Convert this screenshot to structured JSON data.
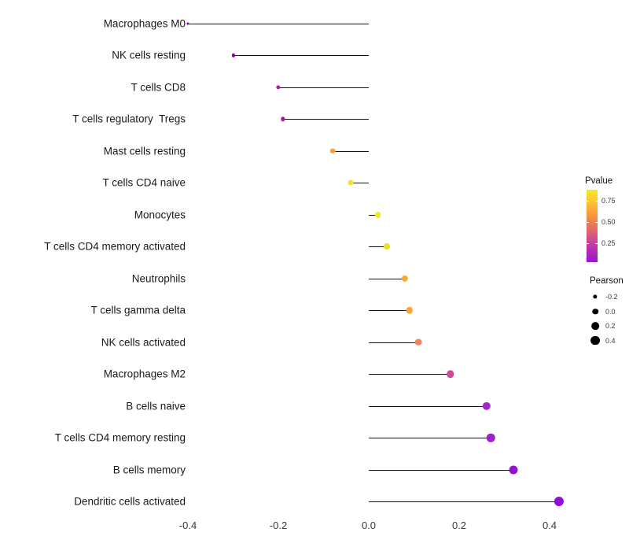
{
  "chart_data": {
    "type": "lollipop",
    "orientation": "horizontal",
    "title": "",
    "xlabel": "",
    "ylabel": "",
    "grid": false,
    "x_ticks": [
      "-0.4",
      "-0.2",
      "0.0",
      "0.2",
      "0.4"
    ],
    "x_tick_values": [
      -0.4,
      -0.2,
      0.0,
      0.2,
      0.4
    ],
    "xlim": [
      -0.45,
      0.47
    ],
    "baseline": 0.0,
    "points": [
      {
        "label": "Macrophages M0",
        "pearson": -0.4,
        "color": "#7e03a8"
      },
      {
        "label": "NK cells resting",
        "pearson": -0.3,
        "color": "#8707a6"
      },
      {
        "label": "T cells CD8",
        "pearson": -0.2,
        "color": "#aa2395"
      },
      {
        "label": "T cells regulatory  Tregs",
        "pearson": -0.19,
        "color": "#a82296"
      },
      {
        "label": "Mast cells resting",
        "pearson": -0.08,
        "color": "#f8a13a"
      },
      {
        "label": "T cells CD4 naive",
        "pearson": -0.04,
        "color": "#f3e229"
      },
      {
        "label": "Monocytes",
        "pearson": 0.02,
        "color": "#f8e621"
      },
      {
        "label": "T cells CD4 memory activated",
        "pearson": 0.04,
        "color": "#f2dd25"
      },
      {
        "label": "Neutrophils",
        "pearson": 0.08,
        "color": "#f9ac33"
      },
      {
        "label": "T cells gamma delta",
        "pearson": 0.09,
        "color": "#f8a43a"
      },
      {
        "label": "NK cells activated",
        "pearson": 0.11,
        "color": "#f0855e"
      },
      {
        "label": "Macrophages M2",
        "pearson": 0.18,
        "color": "#ce4b9c"
      },
      {
        "label": "B cells naive",
        "pearson": 0.26,
        "color": "#a428c8"
      },
      {
        "label": "T cells CD4 memory resting",
        "pearson": 0.27,
        "color": "#9d22cc"
      },
      {
        "label": "B cells memory",
        "pearson": 0.32,
        "color": "#9313d2"
      },
      {
        "label": "Dendritic cells activated",
        "pearson": 0.42,
        "color": "#8e0cdd"
      }
    ],
    "legend": {
      "color": {
        "title": "Pvalue",
        "ticks": [
          "0.75",
          "0.50",
          "0.25"
        ],
        "gradient": [
          "#f7e825",
          "#fdc432",
          "#f99a3e",
          "#ea7457",
          "#d14f8e",
          "#b32db4",
          "#9a16cf"
        ]
      },
      "size": {
        "title": "Pearson",
        "ticks": [
          "-0.2",
          "0.0",
          "0.2",
          "0.4"
        ],
        "tick_values": [
          -0.2,
          0.0,
          0.2,
          0.4
        ]
      }
    }
  }
}
